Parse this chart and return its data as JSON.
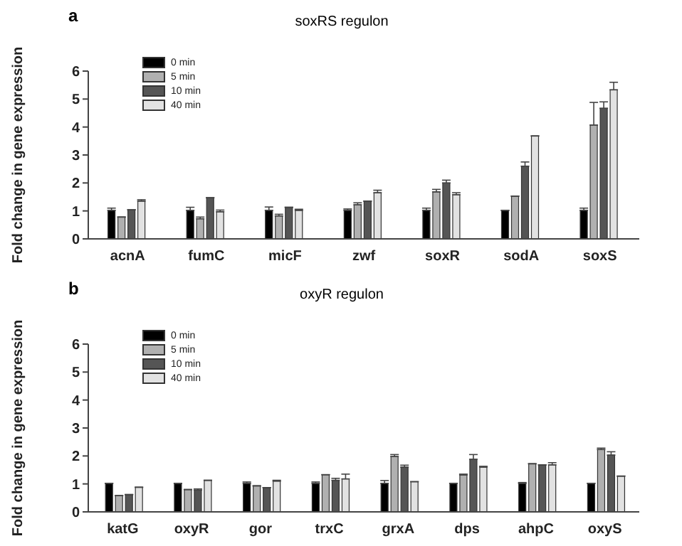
{
  "chart_data": [
    {
      "type": "bar",
      "title": "soxRS regulon",
      "ylabel": "Fold change in gene expression",
      "annotations": [
        "a"
      ],
      "categories": [
        "acnA",
        "fumC",
        "micF",
        "zwf",
        "soxR",
        "sodA",
        "soxS"
      ],
      "ylim": [
        0,
        6
      ],
      "yticks": [
        0,
        1,
        2,
        3,
        4,
        5,
        6
      ],
      "legend": "top left",
      "series": [
        {
          "name": "0 min",
          "color": "#000000",
          "values": [
            1.02,
            1.02,
            1.02,
            1.02,
            1.02,
            1.02,
            1.02
          ],
          "errors": [
            [
              1.02,
              1.1
            ],
            [
              1.02,
              1.13
            ],
            [
              1.02,
              1.14
            ],
            [
              1.02,
              1.07
            ],
            [
              1.02,
              1.1
            ],
            null,
            [
              1.02,
              1.1
            ]
          ]
        },
        {
          "name": "5 min",
          "color": "#b0b0b0",
          "values": [
            0.78,
            0.72,
            0.82,
            1.22,
            1.68,
            1.53,
            4.07
          ],
          "errors": [
            null,
            [
              0.72,
              0.78
            ],
            [
              0.82,
              0.88
            ],
            [
              1.22,
              1.29
            ],
            [
              1.68,
              1.77
            ],
            null,
            [
              4.07,
              4.88
            ]
          ]
        },
        {
          "name": "10 min",
          "color": "#555555",
          "values": [
            1.04,
            1.47,
            1.13,
            1.35,
            2.0,
            2.6,
            4.67
          ],
          "errors": [
            null,
            null,
            null,
            null,
            [
              2.0,
              2.1
            ],
            [
              2.6,
              2.75
            ],
            [
              4.67,
              4.9
            ]
          ]
        },
        {
          "name": "40 min",
          "color": "#e2e2e2",
          "values": [
            1.35,
            0.97,
            1.02,
            1.65,
            1.58,
            3.68,
            5.33
          ],
          "errors": [
            [
              1.35,
              1.4
            ],
            [
              0.97,
              1.03
            ],
            [
              1.02,
              1.06
            ],
            [
              1.65,
              1.74
            ],
            [
              1.58,
              1.65
            ],
            null,
            [
              5.33,
              5.6
            ]
          ]
        }
      ]
    },
    {
      "type": "bar",
      "title": "oxyR regulon",
      "ylabel": "Fold change in gene expression",
      "annotations": [
        "b"
      ],
      "categories": [
        "katG",
        "oxyR",
        "gor",
        "trxC",
        "grxA",
        "dps",
        "ahpC",
        "oxyS"
      ],
      "ylim": [
        0,
        6
      ],
      "yticks": [
        0,
        1,
        2,
        3,
        4,
        5,
        6
      ],
      "legend": "top left",
      "series": [
        {
          "name": "0 min",
          "color": "#000000",
          "values": [
            1.02,
            1.02,
            1.02,
            1.02,
            1.02,
            1.02,
            1.02,
            1.02
          ],
          "errors": [
            null,
            null,
            [
              1.02,
              1.07
            ],
            [
              1.02,
              1.07
            ],
            [
              1.02,
              1.12
            ],
            null,
            [
              1.02,
              1.05
            ],
            null
          ]
        },
        {
          "name": "5 min",
          "color": "#b0b0b0",
          "values": [
            0.58,
            0.8,
            0.93,
            1.33,
            1.98,
            1.32,
            1.72,
            2.23
          ],
          "errors": [
            null,
            null,
            null,
            null,
            [
              1.98,
              2.05
            ],
            [
              1.32,
              1.35
            ],
            null,
            [
              2.23,
              2.28
            ]
          ]
        },
        {
          "name": "10 min",
          "color": "#555555",
          "values": [
            0.62,
            0.78,
            0.87,
            1.13,
            1.6,
            1.88,
            1.68,
            2.03
          ],
          "errors": [
            null,
            [
              0.78,
              0.82
            ],
            null,
            [
              1.13,
              1.2
            ],
            [
              1.6,
              1.67
            ],
            [
              1.88,
              2.05
            ],
            null,
            [
              2.03,
              2.15
            ]
          ]
        },
        {
          "name": "40 min",
          "color": "#e2e2e2",
          "values": [
            0.88,
            1.13,
            1.1,
            1.18,
            1.08,
            1.6,
            1.68,
            1.28
          ],
          "errors": [
            null,
            null,
            [
              1.1,
              1.13
            ],
            [
              1.18,
              1.35
            ],
            null,
            [
              1.6,
              1.63
            ],
            [
              1.68,
              1.76
            ],
            null
          ]
        }
      ]
    }
  ]
}
